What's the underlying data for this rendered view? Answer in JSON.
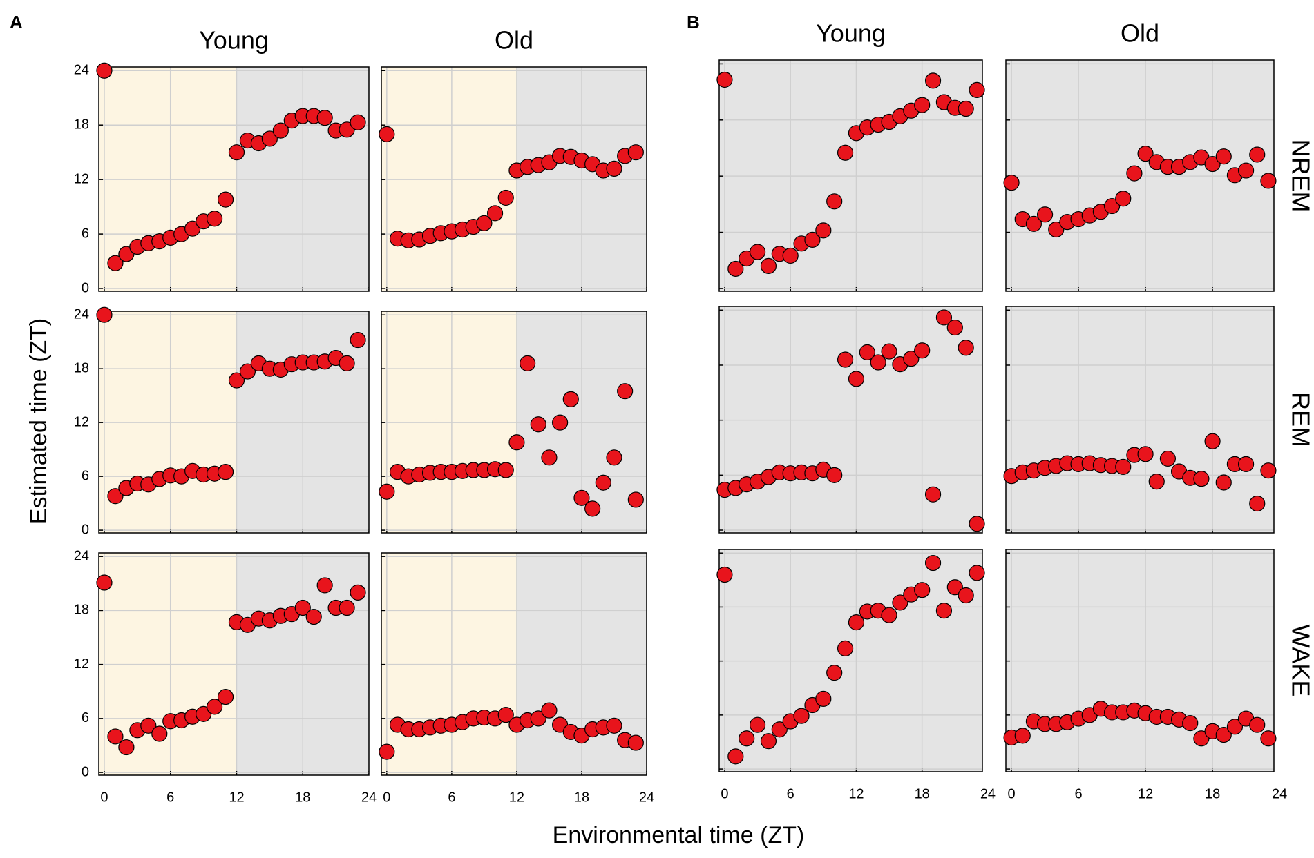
{
  "figure": {
    "panel_labels": [
      "A",
      "B"
    ],
    "ylabel": "Estimated time (ZT)",
    "xlabel": "Environmental time (ZT)"
  },
  "chart_data": [
    {
      "type": "scatter",
      "title": "Young",
      "color": "#e8141c",
      "xlim": [
        -0.5,
        24
      ],
      "ylim": [
        -0.3,
        24.4
      ],
      "xticks": [
        0,
        6,
        12,
        18,
        24
      ],
      "yticks": [
        0,
        6,
        12,
        18,
        24
      ],
      "show_xticklabels": false,
      "show_yticklabels": true,
      "split": 12,
      "day_color": "#fdf5e2",
      "night_color": "#e4e4e4",
      "x": [
        0,
        1,
        2,
        3,
        4,
        5,
        6,
        7,
        8,
        9,
        10,
        11,
        12,
        13,
        14,
        15,
        16,
        17,
        18,
        19,
        20,
        21,
        22,
        23
      ],
      "values": [
        24,
        2.8,
        3.8,
        4.6,
        5,
        5.2,
        5.6,
        6,
        6.6,
        7.4,
        7.7,
        9.8,
        15,
        16.3,
        16,
        16.5,
        17.4,
        18.5,
        19,
        19,
        18.8,
        17.4,
        17.5,
        18.3
      ]
    },
    {
      "type": "scatter",
      "title": "Old",
      "color": "#e8141c",
      "xlim": [
        -0.5,
        24
      ],
      "ylim": [
        -0.3,
        24.4
      ],
      "xticks": [
        0,
        6,
        12,
        18,
        24
      ],
      "yticks": [
        0,
        6,
        12,
        18,
        24
      ],
      "show_xticklabels": false,
      "show_yticklabels": false,
      "split": 12,
      "day_color": "#fdf5e2",
      "night_color": "#e4e4e4",
      "x": [
        0,
        1,
        2,
        3,
        4,
        5,
        6,
        7,
        8,
        9,
        10,
        11,
        12,
        13,
        14,
        15,
        16,
        17,
        18,
        19,
        20,
        21,
        22,
        23
      ],
      "values": [
        17,
        5.5,
        5.3,
        5.4,
        5.8,
        6.1,
        6.3,
        6.5,
        6.8,
        7.2,
        8.3,
        10,
        13,
        13.4,
        13.6,
        13.9,
        14.6,
        14.5,
        14.1,
        13.7,
        13,
        13.2,
        14.6,
        15
      ]
    },
    {
      "type": "scatter",
      "color": "#e8141c",
      "xlim": [
        -0.5,
        24
      ],
      "ylim": [
        -0.3,
        24.4
      ],
      "xticks": [
        0,
        6,
        12,
        18,
        24
      ],
      "yticks": [
        0,
        6,
        12,
        18,
        24
      ],
      "show_xticklabels": false,
      "show_yticklabels": true,
      "split": 12,
      "day_color": "#fdf5e2",
      "night_color": "#e4e4e4",
      "x": [
        0,
        1,
        2,
        3,
        4,
        5,
        6,
        7,
        8,
        9,
        10,
        11,
        12,
        13,
        14,
        15,
        16,
        17,
        18,
        19,
        20,
        21,
        22,
        23
      ],
      "values": [
        24,
        3.8,
        4.7,
        5.2,
        5.1,
        5.7,
        6.1,
        6,
        6.6,
        6.2,
        6.3,
        6.5,
        16.7,
        17.7,
        18.6,
        18,
        17.9,
        18.5,
        18.7,
        18.7,
        18.8,
        19.2,
        18.6,
        21.2
      ]
    },
    {
      "type": "scatter",
      "color": "#e8141c",
      "xlim": [
        -0.5,
        24
      ],
      "ylim": [
        -0.3,
        24.4
      ],
      "xticks": [
        0,
        6,
        12,
        18,
        24
      ],
      "yticks": [
        0,
        6,
        12,
        18,
        24
      ],
      "show_xticklabels": false,
      "show_yticklabels": false,
      "split": 12,
      "day_color": "#fdf5e2",
      "night_color": "#e4e4e4",
      "x": [
        0,
        1,
        2,
        3,
        4,
        5,
        6,
        7,
        8,
        9,
        10,
        11,
        12,
        13,
        14,
        15,
        16,
        17,
        18,
        19,
        20,
        21,
        22,
        23
      ],
      "values": [
        4.3,
        6.5,
        6,
        6.2,
        6.4,
        6.5,
        6.5,
        6.6,
        6.7,
        6.7,
        6.8,
        6.7,
        9.8,
        18.6,
        11.8,
        8.1,
        12,
        14.6,
        3.6,
        2.4,
        5.3,
        8.1,
        15.5,
        3.4
      ]
    },
    {
      "type": "scatter",
      "color": "#e8141c",
      "xlim": [
        -0.5,
        24
      ],
      "ylim": [
        -0.3,
        24.4
      ],
      "xticks": [
        0,
        6,
        12,
        18,
        24
      ],
      "yticks": [
        0,
        6,
        12,
        18,
        24
      ],
      "show_xticklabels": true,
      "show_yticklabels": true,
      "split": 12,
      "day_color": "#fdf5e2",
      "night_color": "#e4e4e4",
      "x": [
        0,
        1,
        2,
        3,
        4,
        5,
        6,
        7,
        8,
        9,
        10,
        11,
        12,
        13,
        14,
        15,
        16,
        17,
        18,
        19,
        20,
        21,
        22,
        23
      ],
      "values": [
        21.1,
        4,
        2.8,
        4.7,
        5.2,
        4.3,
        5.7,
        5.8,
        6.2,
        6.5,
        7.3,
        8.4,
        16.7,
        16.4,
        17.1,
        16.9,
        17.4,
        17.6,
        18.3,
        17.3,
        20.8,
        18.3,
        18.3,
        20
      ]
    },
    {
      "type": "scatter",
      "color": "#e8141c",
      "xlim": [
        -0.5,
        24
      ],
      "ylim": [
        -0.3,
        24.4
      ],
      "xticks": [
        0,
        6,
        12,
        18,
        24
      ],
      "yticks": [
        0,
        6,
        12,
        18,
        24
      ],
      "show_xticklabels": true,
      "show_yticklabels": false,
      "split": 12,
      "day_color": "#fdf5e2",
      "night_color": "#e4e4e4",
      "x": [
        0,
        1,
        2,
        3,
        4,
        5,
        6,
        7,
        8,
        9,
        10,
        11,
        12,
        13,
        14,
        15,
        16,
        17,
        18,
        19,
        20,
        21,
        22,
        23
      ],
      "values": [
        2.3,
        5.3,
        4.8,
        4.8,
        5,
        5.2,
        5.3,
        5.6,
        6,
        6.1,
        6,
        6.4,
        5.3,
        5.8,
        6,
        6.9,
        5.3,
        4.5,
        4.1,
        4.8,
        5,
        5.2,
        3.6,
        3.3
      ]
    },
    {
      "type": "scatter",
      "title": "Young",
      "color": "#e8141c",
      "xlim": [
        -0.5,
        23.5
      ],
      "ylim": [
        -0.3,
        24.4
      ],
      "xticks": [
        0,
        6,
        12,
        18,
        24
      ],
      "yticks": [
        0,
        6,
        12,
        18,
        24
      ],
      "show_xticklabels": false,
      "show_yticklabels": false,
      "split": 12,
      "day_color": "#e4e4e4",
      "night_color": "#e4e4e4",
      "x": [
        0,
        1,
        2,
        3,
        4,
        5,
        6,
        7,
        8,
        9,
        10,
        11,
        12,
        13,
        14,
        15,
        16,
        17,
        18,
        19,
        20,
        21,
        22,
        23
      ],
      "values": [
        22.3,
        2.1,
        3.2,
        3.9,
        2.4,
        3.7,
        3.5,
        4.8,
        5.2,
        6.2,
        9.3,
        14.5,
        16.6,
        17.2,
        17.5,
        17.8,
        18.4,
        19,
        19.6,
        22.2,
        19.9,
        19.3,
        19.2,
        21.2
      ]
    },
    {
      "type": "scatter",
      "title": "Old",
      "annotation": "NREM",
      "color": "#e8141c",
      "xlim": [
        -0.5,
        23.5
      ],
      "ylim": [
        -0.3,
        24.4
      ],
      "xticks": [
        0,
        6,
        12,
        18,
        24
      ],
      "yticks": [
        0,
        6,
        12,
        18,
        24
      ],
      "show_xticklabels": false,
      "show_yticklabels": false,
      "split": 12,
      "day_color": "#e4e4e4",
      "night_color": "#e4e4e4",
      "x": [
        0,
        1,
        2,
        3,
        4,
        5,
        6,
        7,
        8,
        9,
        10,
        11,
        12,
        13,
        14,
        15,
        16,
        17,
        18,
        19,
        20,
        21,
        22,
        23
      ],
      "values": [
        11.3,
        7.4,
        6.9,
        7.9,
        6.3,
        7.1,
        7.4,
        7.8,
        8.2,
        8.8,
        9.6,
        12.3,
        14.4,
        13.5,
        13,
        13,
        13.5,
        14,
        13.3,
        14.1,
        12.1,
        12.6,
        14.3,
        11.5
      ]
    },
    {
      "type": "scatter",
      "color": "#e8141c",
      "xlim": [
        -0.5,
        23.5
      ],
      "ylim": [
        -0.3,
        24.4
      ],
      "xticks": [
        0,
        6,
        12,
        18,
        24
      ],
      "yticks": [
        0,
        6,
        12,
        18,
        24
      ],
      "show_xticklabels": false,
      "show_yticklabels": false,
      "split": 12,
      "day_color": "#e4e4e4",
      "night_color": "#e4e4e4",
      "x": [
        0,
        1,
        2,
        3,
        4,
        5,
        6,
        7,
        8,
        9,
        10,
        11,
        12,
        13,
        14,
        15,
        16,
        17,
        18,
        19,
        20,
        21,
        22,
        23
      ],
      "values": [
        4.4,
        4.6,
        5,
        5.3,
        5.8,
        6.3,
        6.2,
        6.3,
        6.2,
        6.6,
        6,
        18.6,
        16.5,
        19.4,
        18.3,
        19.5,
        18.1,
        18.7,
        19.6,
        3.9,
        23.2,
        22.1,
        19.9,
        0.7
      ]
    },
    {
      "type": "scatter",
      "annotation": "REM",
      "color": "#e8141c",
      "xlim": [
        -0.5,
        23.5
      ],
      "ylim": [
        -0.3,
        24.4
      ],
      "xticks": [
        0,
        6,
        12,
        18,
        24
      ],
      "yticks": [
        0,
        6,
        12,
        18,
        24
      ],
      "show_xticklabels": false,
      "show_yticklabels": false,
      "split": 12,
      "day_color": "#e4e4e4",
      "night_color": "#e4e4e4",
      "x": [
        0,
        1,
        2,
        3,
        4,
        5,
        6,
        7,
        8,
        9,
        10,
        11,
        12,
        13,
        14,
        15,
        16,
        17,
        18,
        19,
        20,
        21,
        22,
        23
      ],
      "values": [
        5.9,
        6.3,
        6.5,
        6.8,
        7,
        7.3,
        7.2,
        7.3,
        7.1,
        7,
        6.9,
        8.2,
        8.3,
        5.3,
        7.8,
        6.4,
        5.7,
        5.6,
        9.7,
        5.2,
        7.2,
        7.2,
        2.9,
        6.5
      ]
    },
    {
      "type": "scatter",
      "color": "#e8141c",
      "xlim": [
        -0.5,
        23.5
      ],
      "ylim": [
        -0.3,
        24.4
      ],
      "xticks": [
        0,
        6,
        12,
        18,
        24
      ],
      "yticks": [
        0,
        6,
        12,
        18,
        24
      ],
      "show_xticklabels": true,
      "show_yticklabels": false,
      "split": 12,
      "day_color": "#e4e4e4",
      "night_color": "#e4e4e4",
      "x": [
        0,
        1,
        2,
        3,
        4,
        5,
        6,
        7,
        8,
        9,
        10,
        11,
        12,
        13,
        14,
        15,
        16,
        17,
        18,
        19,
        20,
        21,
        22,
        23
      ],
      "values": [
        21.6,
        1.4,
        3.4,
        4.9,
        3.1,
        4.4,
        5.3,
        5.9,
        7.1,
        7.8,
        10.7,
        13.4,
        16.3,
        17.5,
        17.6,
        17.1,
        18.5,
        19.4,
        19.9,
        22.9,
        17.6,
        20.2,
        19.3,
        21.8
      ]
    },
    {
      "type": "scatter",
      "annotation": "WAKE",
      "color": "#e8141c",
      "xlim": [
        -0.5,
        23.5
      ],
      "ylim": [
        -0.3,
        24.4
      ],
      "xticks": [
        0,
        6,
        12,
        18,
        24
      ],
      "yticks": [
        0,
        6,
        12,
        18,
        24
      ],
      "show_xticklabels": true,
      "show_yticklabels": false,
      "split": 12,
      "day_color": "#e4e4e4",
      "night_color": "#e4e4e4",
      "x": [
        0,
        1,
        2,
        3,
        4,
        5,
        6,
        7,
        8,
        9,
        10,
        11,
        12,
        13,
        14,
        15,
        16,
        17,
        18,
        19,
        20,
        21,
        22,
        23
      ],
      "values": [
        3.5,
        3.7,
        5.3,
        5,
        5,
        5.2,
        5.6,
        6,
        6.7,
        6.3,
        6.3,
        6.5,
        6.2,
        5.8,
        5.8,
        5.5,
        5.1,
        3.4,
        4.2,
        3.8,
        4.7,
        5.6,
        4.9,
        3.4
      ]
    }
  ]
}
